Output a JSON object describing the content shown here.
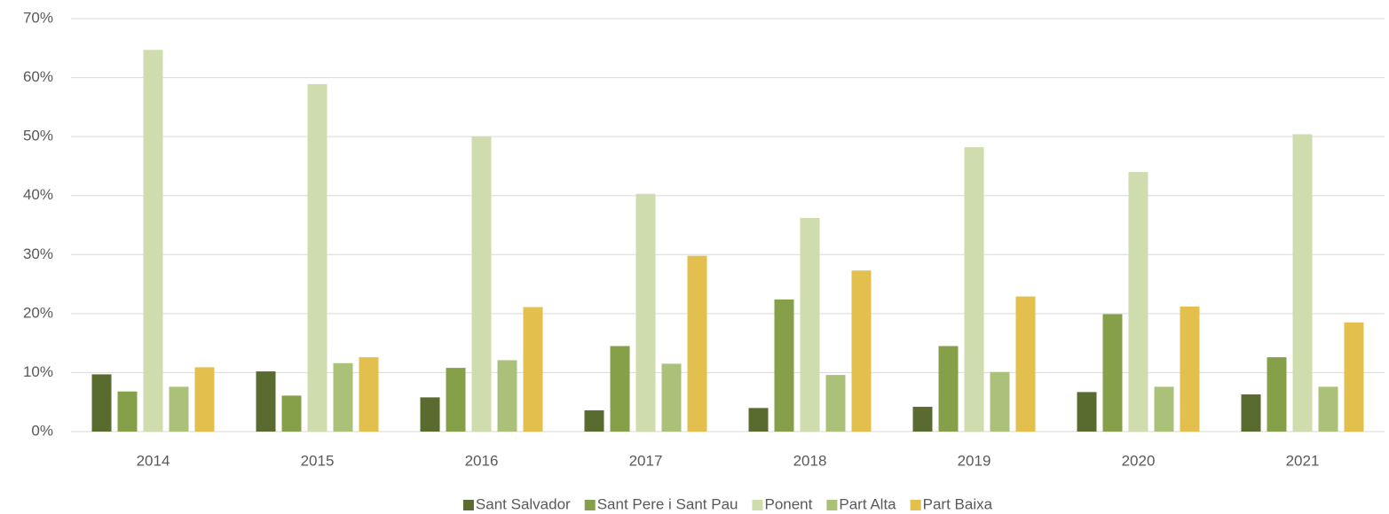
{
  "chart_data": {
    "type": "bar",
    "categories": [
      "2014",
      "2015",
      "2016",
      "2017",
      "2018",
      "2019",
      "2020",
      "2021"
    ],
    "series": [
      {
        "name": "Sant Salvador",
        "color": "#5a6b30",
        "values": [
          9.7,
          10.2,
          5.8,
          3.6,
          4.0,
          4.2,
          6.7,
          6.3
        ]
      },
      {
        "name": "Sant Pere i Sant Pau",
        "color": "#86a04a",
        "values": [
          6.8,
          6.1,
          10.8,
          14.5,
          22.4,
          14.5,
          19.9,
          12.6
        ]
      },
      {
        "name": "Ponent",
        "color": "#cfdcae",
        "values": [
          64.7,
          58.9,
          50.0,
          40.3,
          36.2,
          48.2,
          44.0,
          50.4
        ]
      },
      {
        "name": "Part Alta",
        "color": "#abc17a",
        "values": [
          7.6,
          11.6,
          12.1,
          11.5,
          9.6,
          10.1,
          7.6,
          7.6
        ]
      },
      {
        "name": "Part Baixa",
        "color": "#e3bf4d",
        "values": [
          10.9,
          12.6,
          21.1,
          29.8,
          27.3,
          22.9,
          21.2,
          18.5
        ]
      }
    ],
    "ylim": [
      0,
      70
    ],
    "yticks": [
      {
        "value": 0,
        "label": "0%"
      },
      {
        "value": 10,
        "label": "10%"
      },
      {
        "value": 20,
        "label": "20%"
      },
      {
        "value": 30,
        "label": "30%"
      },
      {
        "value": 40,
        "label": "40%"
      },
      {
        "value": 50,
        "label": "50%"
      },
      {
        "value": 60,
        "label": "60%"
      },
      {
        "value": 70,
        "label": "70%"
      }
    ],
    "grid": true,
    "legend": "bottom"
  }
}
